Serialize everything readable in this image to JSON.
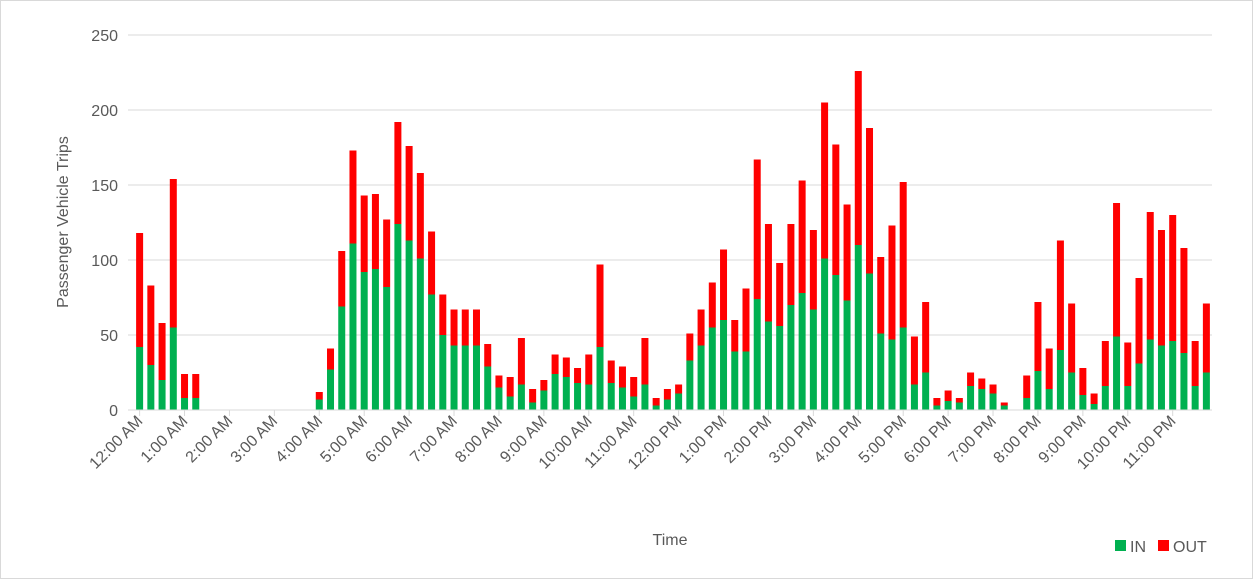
{
  "chart_data": {
    "type": "stacked_bar",
    "y_label": "Passenger Vehicle Trips",
    "x_label": "Time",
    "categories": [
      "12:00 AM",
      null,
      null,
      null,
      "1:00 AM",
      null,
      null,
      null,
      "2:00 AM",
      null,
      null,
      null,
      "3:00 AM",
      null,
      null,
      null,
      "4:00 AM",
      null,
      null,
      null,
      "5:00 AM",
      null,
      null,
      null,
      "6:00 AM",
      null,
      null,
      null,
      "7:00 AM",
      null,
      null,
      null,
      "8:00 AM",
      null,
      null,
      null,
      "9:00 AM",
      null,
      null,
      null,
      "10:00 AM",
      null,
      null,
      null,
      "11:00 AM",
      null,
      null,
      null,
      "12:00 PM",
      null,
      null,
      null,
      "1:00 PM",
      null,
      null,
      null,
      "2:00 PM",
      null,
      null,
      null,
      "3:00 PM",
      null,
      null,
      null,
      "4:00 PM",
      null,
      null,
      null,
      "5:00 PM",
      null,
      null,
      null,
      "6:00 PM",
      null,
      null,
      null,
      "7:00 PM",
      null,
      null,
      null,
      "8:00 PM",
      null,
      null,
      null,
      "9:00 PM",
      null,
      null,
      null,
      "10:00 PM",
      null,
      null,
      null,
      "11:00 PM",
      null,
      null,
      null
    ],
    "series": [
      {
        "name": "IN",
        "color": "#00b050",
        "values": [
          42,
          30,
          20,
          55,
          8,
          8,
          0,
          0,
          0,
          0,
          0,
          0,
          0,
          0,
          0,
          0,
          7,
          27,
          69,
          111,
          92,
          94,
          82,
          124,
          113,
          101,
          77,
          50,
          43,
          43,
          43,
          29,
          15,
          9,
          17,
          5,
          13,
          24,
          22,
          18,
          17,
          42,
          18,
          15,
          9,
          17,
          3,
          7,
          11,
          33,
          43,
          55,
          60,
          39,
          39,
          74,
          59,
          56,
          70,
          78,
          67,
          101,
          90,
          73,
          110,
          91,
          51,
          47,
          55,
          17,
          25,
          3,
          6,
          5,
          16,
          14,
          11,
          3,
          0,
          8,
          26,
          14,
          40,
          25,
          10,
          4,
          16,
          49,
          16,
          31,
          47,
          43,
          46,
          38,
          16,
          25
        ]
      },
      {
        "name": "OUT",
        "color": "#ff0000",
        "values": [
          76,
          53,
          38,
          99,
          16,
          16,
          0,
          0,
          0,
          0,
          0,
          0,
          0,
          0,
          0,
          0,
          5,
          14,
          37,
          62,
          51,
          50,
          45,
          68,
          63,
          57,
          42,
          27,
          24,
          24,
          24,
          15,
          8,
          13,
          31,
          9,
          7,
          13,
          13,
          10,
          20,
          55,
          15,
          14,
          13,
          31,
          5,
          7,
          6,
          18,
          24,
          30,
          47,
          21,
          42,
          93,
          65,
          42,
          54,
          75,
          53,
          104,
          87,
          64,
          116,
          97,
          51,
          76,
          97,
          32,
          47,
          5,
          7,
          3,
          9,
          7,
          6,
          2,
          0,
          15,
          46,
          27,
          73,
          46,
          18,
          7,
          30,
          89,
          29,
          57,
          85,
          77,
          84,
          70,
          30,
          46
        ]
      }
    ],
    "ylim": [
      0,
      250
    ],
    "yticks": [
      0,
      50,
      100,
      150,
      200,
      250
    ],
    "grid": true,
    "legend": "bottom-right"
  }
}
